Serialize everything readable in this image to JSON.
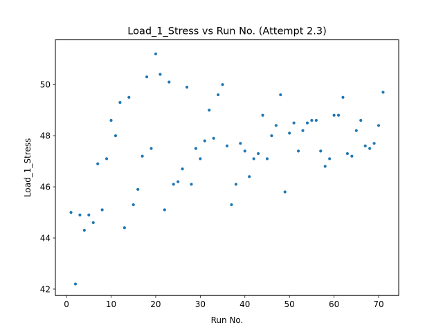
{
  "chart_data": {
    "type": "scatter",
    "title": "Load_1_Stress vs Run No. (Attempt 2.3)",
    "xlabel": "Run No.",
    "ylabel": "Load_1_Stress",
    "xlim": [
      -2.5,
      74.5
    ],
    "ylim": [
      41.75,
      51.75
    ],
    "xticks": [
      0,
      10,
      20,
      30,
      40,
      50,
      60,
      70
    ],
    "yticks": [
      42,
      44,
      46,
      48,
      50
    ],
    "grid": false,
    "marker_color": "#1f77b4",
    "series": [
      {
        "x": [
          1,
          2,
          3,
          4,
          5,
          6,
          7,
          8,
          9,
          10,
          11,
          12,
          13,
          14,
          15,
          16,
          17,
          18,
          19,
          20,
          21,
          22,
          23,
          24,
          25,
          26,
          27,
          28,
          29,
          30,
          31,
          32,
          33,
          34,
          35,
          36,
          37,
          38,
          39,
          40,
          41,
          42,
          43,
          44,
          45,
          46,
          47,
          48,
          49,
          50,
          51,
          52,
          53,
          54,
          55,
          56,
          57,
          58,
          59,
          60,
          61,
          62,
          63,
          64,
          65,
          66,
          67,
          68,
          69,
          70,
          71
        ],
        "y": [
          45.0,
          42.2,
          44.9,
          44.3,
          44.9,
          44.6,
          46.9,
          45.1,
          47.1,
          48.6,
          48.0,
          49.3,
          44.4,
          49.5,
          45.3,
          45.9,
          47.2,
          50.3,
          47.5,
          51.2,
          50.4,
          45.1,
          50.1,
          46.1,
          46.2,
          46.7,
          49.9,
          46.1,
          47.5,
          47.1,
          47.8,
          49.0,
          47.9,
          49.6,
          50.0,
          47.6,
          45.3,
          46.1,
          47.7,
          47.4,
          46.4,
          47.1,
          47.3,
          48.8,
          47.1,
          48.0,
          48.4,
          49.6,
          45.8,
          48.1,
          48.5,
          47.4,
          48.2,
          48.5,
          48.6,
          48.6,
          47.4,
          46.8,
          47.1,
          48.8,
          48.8,
          49.5,
          47.3,
          47.2,
          48.2,
          48.6,
          47.6,
          47.5,
          47.7,
          48.4,
          49.7
        ]
      }
    ]
  }
}
